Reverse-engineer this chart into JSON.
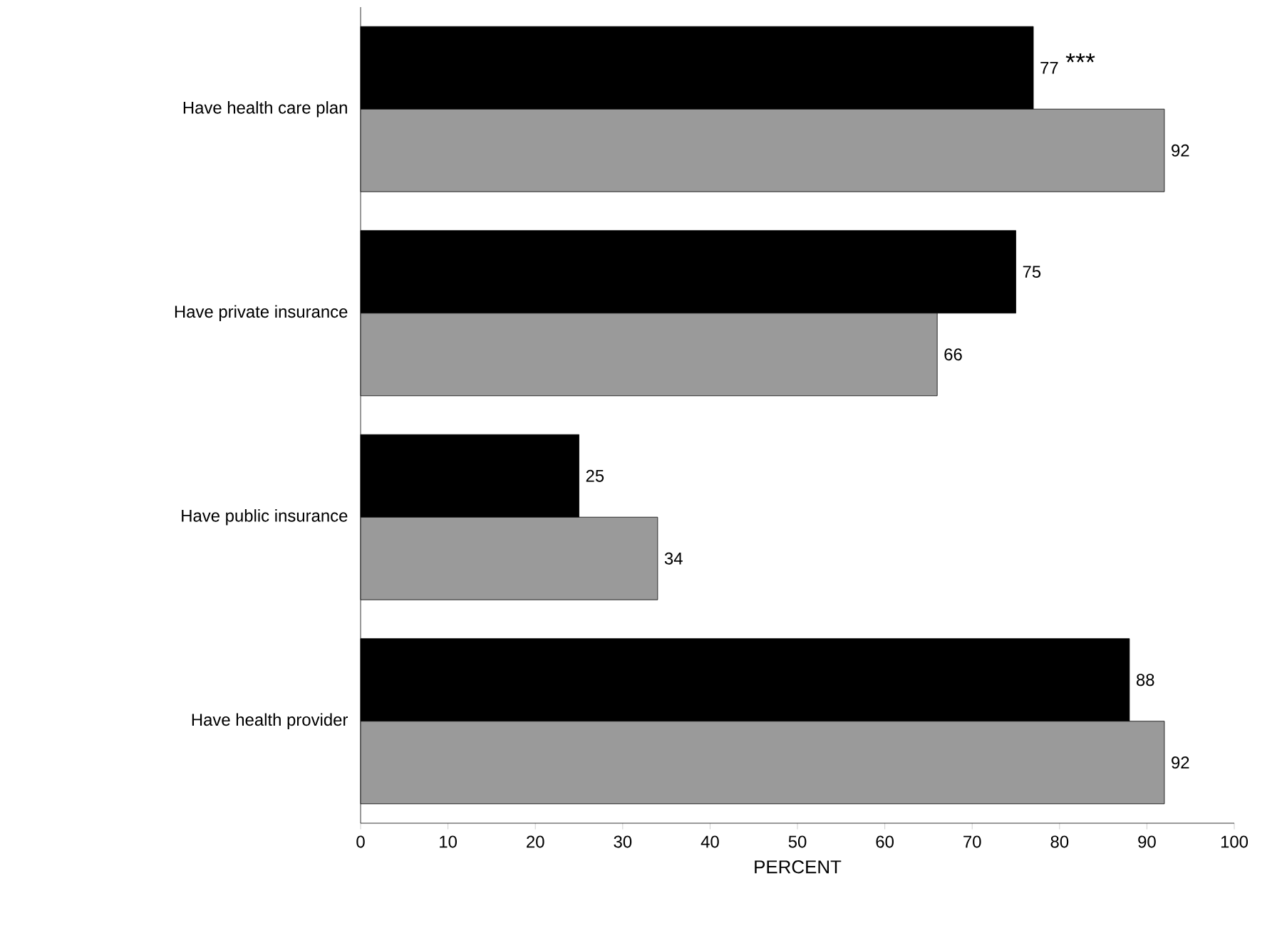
{
  "chart_data": {
    "type": "bar",
    "orientation": "horizontal",
    "xlabel": "PERCENT",
    "categories": [
      "Have health care plan",
      "Have private insurance",
      "Have public insurance",
      "Have health provider"
    ],
    "series": [
      {
        "color": "#000000",
        "values": [
          77,
          75,
          25,
          88
        ]
      },
      {
        "color": "#9a9a9a",
        "values": [
          92,
          66,
          34,
          92
        ]
      }
    ],
    "xlim": [
      0,
      100
    ],
    "xticks": [
      0,
      10,
      20,
      30,
      40,
      50,
      60,
      70,
      80,
      90,
      100
    ],
    "data_labels": true,
    "grid": false,
    "annotations": [
      {
        "text": "***",
        "x": 77,
        "y": "Have health care plan"
      }
    ]
  }
}
